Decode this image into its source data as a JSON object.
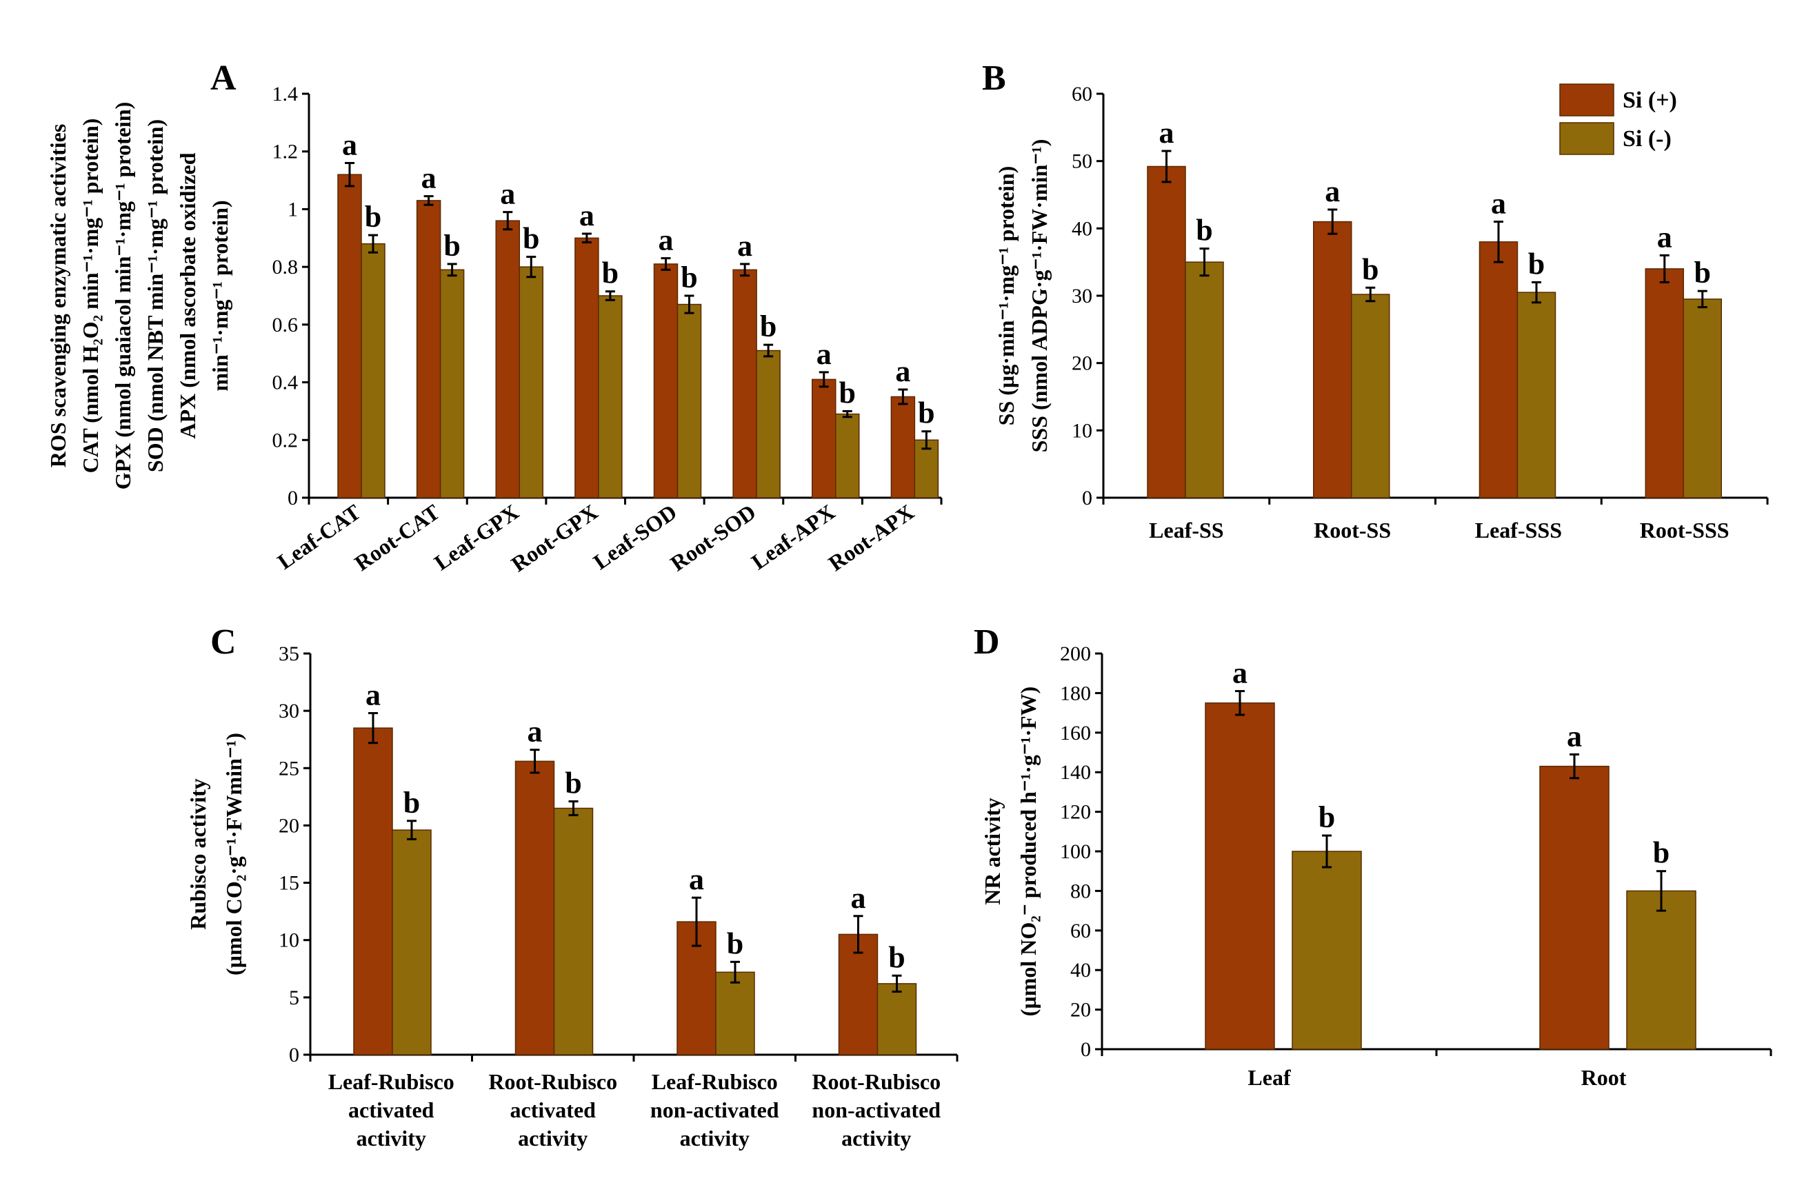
{
  "colors": {
    "si_plus": "#9B3A05",
    "si_minus": "#8F6A0A"
  },
  "legend": {
    "si_plus": "Si (+)",
    "si_minus": "Si (-)"
  },
  "chart_data": [
    {
      "panel": "A",
      "type": "bar",
      "categories": [
        "Leaf-CAT",
        "Root-CAT",
        "Leaf-GPX",
        "Root-GPX",
        "Leaf-SOD",
        "Root-SOD",
        "Leaf-APX",
        "Root-APX"
      ],
      "series": [
        {
          "name": "Si (+)",
          "values": [
            1.12,
            1.03,
            0.96,
            0.9,
            0.81,
            0.79,
            0.41,
            0.35
          ],
          "errors": [
            0.04,
            0.015,
            0.03,
            0.015,
            0.02,
            0.02,
            0.025,
            0.025
          ],
          "labels": [
            "a",
            "a",
            "a",
            "a",
            "a",
            "a",
            "a",
            "a"
          ]
        },
        {
          "name": "Si (-)",
          "values": [
            0.88,
            0.79,
            0.8,
            0.7,
            0.67,
            0.51,
            0.29,
            0.2
          ],
          "errors": [
            0.03,
            0.02,
            0.035,
            0.015,
            0.03,
            0.02,
            0.01,
            0.03
          ],
          "labels": [
            "b",
            "b",
            "b",
            "b",
            "b",
            "b",
            "b",
            "b"
          ]
        }
      ],
      "yticks": [
        "0",
        "0.2",
        "0.4",
        "0.6",
        "0.8",
        "1",
        "1.2",
        "1.4"
      ],
      "ylim": [
        0,
        1.4
      ],
      "ylabel_lines": [
        "ROS scavenging enzymatic activities",
        "CAT (nmol H₂O₂ min⁻¹·mg⁻¹ protein)",
        "GPX  (nmol guaiacol min⁻¹·mg⁻¹ protein)",
        "SOD (nmol NBT min⁻¹·mg⁻¹ protein)",
        "APX (nmol ascorbate oxidized",
        "min⁻¹·mg⁻¹ protein)"
      ],
      "xlabel": ""
    },
    {
      "panel": "B",
      "type": "bar",
      "categories": [
        "Leaf-SS",
        "Root-SS",
        "Leaf-SSS",
        "Root-SSS"
      ],
      "series": [
        {
          "name": "Si (+)",
          "values": [
            49.2,
            41.0,
            38.0,
            34.0
          ],
          "errors": [
            2.3,
            1.8,
            3.0,
            2.0
          ],
          "labels": [
            "a",
            "a",
            "a",
            "a"
          ]
        },
        {
          "name": "Si (-)",
          "values": [
            35.0,
            30.2,
            30.5,
            29.5
          ],
          "errors": [
            2.0,
            1.0,
            1.5,
            1.2
          ],
          "labels": [
            "b",
            "b",
            "b",
            "b"
          ]
        }
      ],
      "yticks": [
        "0",
        "10",
        "20",
        "30",
        "40",
        "50",
        "60"
      ],
      "ylim": [
        0,
        60
      ],
      "ylabel_lines": [
        "SS (µg·min⁻¹·mg⁻¹ protein)",
        "SSS (nmol ADPG·g⁻¹·FW·min⁻¹)"
      ],
      "xlabel": ""
    },
    {
      "panel": "C",
      "type": "bar",
      "categories": [
        [
          "Leaf-Rubisco",
          "activated",
          "activity"
        ],
        [
          "Root-Rubisco",
          "activated",
          "activity"
        ],
        [
          "Leaf-Rubisco",
          "non-activated",
          "activity"
        ],
        [
          "Root-Rubisco",
          "non-activated",
          "activity"
        ]
      ],
      "series": [
        {
          "name": "Si (+)",
          "values": [
            28.5,
            25.6,
            11.6,
            10.5
          ],
          "errors": [
            1.3,
            1.0,
            2.1,
            1.6
          ],
          "labels": [
            "a",
            "a",
            "a",
            "a"
          ]
        },
        {
          "name": "Si (-)",
          "values": [
            19.6,
            21.5,
            7.2,
            6.2
          ],
          "errors": [
            0.8,
            0.6,
            0.9,
            0.7
          ],
          "labels": [
            "b",
            "b",
            "b",
            "b"
          ]
        }
      ],
      "yticks": [
        "0",
        "5",
        "10",
        "15",
        "20",
        "25",
        "30",
        "35"
      ],
      "ylim": [
        0,
        35
      ],
      "ylabel_lines": [
        "Rubisco activity",
        "(µmol CO₂·g⁻¹·FWmin⁻¹)"
      ],
      "xlabel": ""
    },
    {
      "panel": "D",
      "type": "bar",
      "categories": [
        "Leaf",
        "Root"
      ],
      "series": [
        {
          "name": "Si (+)",
          "values": [
            175,
            143
          ],
          "errors": [
            6,
            6
          ],
          "labels": [
            "a",
            "a"
          ]
        },
        {
          "name": "Si (-)",
          "values": [
            100,
            80
          ],
          "errors": [
            8,
            10
          ],
          "labels": [
            "b",
            "b"
          ]
        }
      ],
      "yticks": [
        "0",
        "20",
        "40",
        "60",
        "80",
        "100",
        "120",
        "140",
        "160",
        "180",
        "200"
      ],
      "ylim": [
        0,
        200
      ],
      "ylabel_lines": [
        "NR activity",
        "(µmol NO₂⁻ produced h⁻¹·g⁻¹·FW)"
      ],
      "xlabel": ""
    }
  ]
}
